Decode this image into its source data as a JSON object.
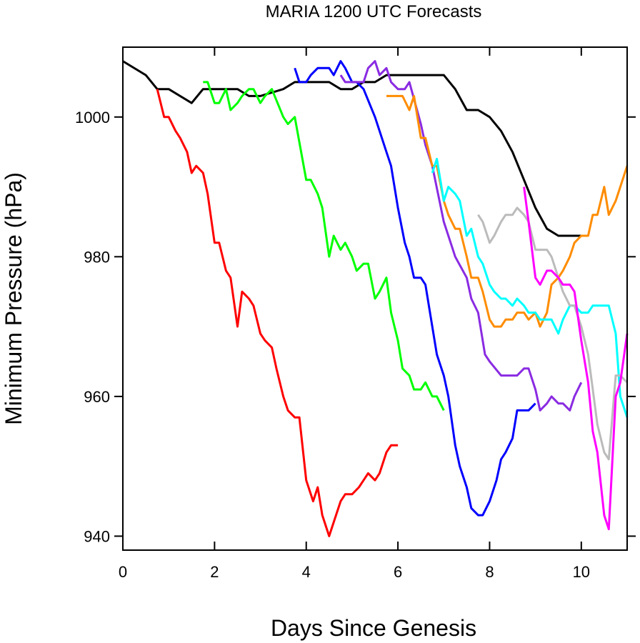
{
  "chart_data": {
    "type": "line",
    "title": "MARIA 1200 UTC Forecasts",
    "xlabel": "Days Since Genesis",
    "ylabel": "Minimum Pressure (hPa)",
    "xlim": [
      0,
      11
    ],
    "ylim": [
      938,
      1010
    ],
    "xticks": [
      "0",
      "2",
      "4",
      "6",
      "8",
      "10"
    ],
    "yticks": [
      "940",
      "960",
      "980",
      "1000"
    ],
    "grid": false,
    "legend": "none",
    "series": [
      {
        "color": "#000000",
        "points": [
          [
            0,
            1008
          ],
          [
            0.5,
            1006
          ],
          [
            0.75,
            1004
          ],
          [
            1,
            1004
          ],
          [
            1.5,
            1002
          ],
          [
            1.75,
            1004
          ],
          [
            2,
            1004
          ],
          [
            2.5,
            1004
          ],
          [
            2.75,
            1003
          ],
          [
            3,
            1003
          ],
          [
            3.5,
            1004
          ],
          [
            3.75,
            1005
          ],
          [
            4,
            1005
          ],
          [
            4.5,
            1005
          ],
          [
            4.75,
            1004
          ],
          [
            5,
            1004
          ],
          [
            5.25,
            1005
          ],
          [
            5.5,
            1005
          ],
          [
            5.75,
            1006
          ],
          [
            6,
            1006
          ],
          [
            6.5,
            1006
          ],
          [
            7,
            1006
          ],
          [
            7.25,
            1004
          ],
          [
            7.5,
            1001
          ],
          [
            7.75,
            1001
          ],
          [
            8,
            1000
          ],
          [
            8.25,
            998
          ],
          [
            8.5,
            995
          ],
          [
            8.75,
            991
          ],
          [
            9,
            987
          ],
          [
            9.25,
            984
          ],
          [
            9.5,
            983
          ],
          [
            10,
            983
          ]
        ]
      },
      {
        "color": "#ff0000",
        "points": [
          [
            0.75,
            1004
          ],
          [
            0.9,
            1000
          ],
          [
            1,
            1000
          ],
          [
            1.15,
            998
          ],
          [
            1.25,
            997
          ],
          [
            1.4,
            995
          ],
          [
            1.5,
            992
          ],
          [
            1.6,
            993
          ],
          [
            1.75,
            992
          ],
          [
            1.85,
            989
          ],
          [
            2,
            982
          ],
          [
            2.1,
            982
          ],
          [
            2.25,
            978
          ],
          [
            2.35,
            977
          ],
          [
            2.5,
            970
          ],
          [
            2.6,
            975
          ],
          [
            2.75,
            974
          ],
          [
            2.85,
            973
          ],
          [
            3,
            969
          ],
          [
            3.1,
            968
          ],
          [
            3.25,
            967
          ],
          [
            3.35,
            964
          ],
          [
            3.5,
            960
          ],
          [
            3.6,
            958
          ],
          [
            3.75,
            957
          ],
          [
            3.85,
            957
          ],
          [
            4,
            948
          ],
          [
            4.15,
            945
          ],
          [
            4.25,
            947
          ],
          [
            4.35,
            943
          ],
          [
            4.5,
            940
          ],
          [
            4.6,
            942
          ],
          [
            4.75,
            945
          ],
          [
            4.85,
            946
          ],
          [
            5,
            946
          ],
          [
            5.15,
            947
          ],
          [
            5.25,
            948
          ],
          [
            5.35,
            949
          ],
          [
            5.5,
            948
          ],
          [
            5.6,
            949
          ],
          [
            5.75,
            952
          ],
          [
            5.85,
            953
          ],
          [
            6,
            953
          ]
        ]
      },
      {
        "color": "#00ff00",
        "points": [
          [
            1.75,
            1005
          ],
          [
            1.85,
            1005
          ],
          [
            2,
            1002
          ],
          [
            2.1,
            1002
          ],
          [
            2.25,
            1004
          ],
          [
            2.35,
            1001
          ],
          [
            2.5,
            1002
          ],
          [
            2.6,
            1003
          ],
          [
            2.75,
            1004
          ],
          [
            2.85,
            1004
          ],
          [
            3,
            1002
          ],
          [
            3.1,
            1003
          ],
          [
            3.25,
            1004
          ],
          [
            3.5,
            1000
          ],
          [
            3.6,
            999
          ],
          [
            3.75,
            1000
          ],
          [
            4,
            991
          ],
          [
            4.1,
            991
          ],
          [
            4.25,
            989
          ],
          [
            4.35,
            987
          ],
          [
            4.5,
            980
          ],
          [
            4.6,
            983
          ],
          [
            4.75,
            981
          ],
          [
            4.85,
            982
          ],
          [
            5,
            980
          ],
          [
            5.1,
            978
          ],
          [
            5.25,
            979
          ],
          [
            5.35,
            979
          ],
          [
            5.5,
            974
          ],
          [
            5.6,
            975
          ],
          [
            5.75,
            977
          ],
          [
            5.85,
            972
          ],
          [
            6,
            968
          ],
          [
            6.1,
            964
          ],
          [
            6.25,
            963
          ],
          [
            6.35,
            961
          ],
          [
            6.5,
            961
          ],
          [
            6.6,
            962
          ],
          [
            6.75,
            960
          ],
          [
            6.85,
            960
          ],
          [
            7,
            958
          ]
        ]
      },
      {
        "color": "#0000ff",
        "points": [
          [
            3.75,
            1007
          ],
          [
            3.85,
            1005
          ],
          [
            4,
            1005
          ],
          [
            4.1,
            1006
          ],
          [
            4.25,
            1007
          ],
          [
            4.35,
            1007
          ],
          [
            4.5,
            1007
          ],
          [
            4.6,
            1006
          ],
          [
            4.75,
            1008
          ],
          [
            4.85,
            1007
          ],
          [
            5,
            1005
          ],
          [
            5.1,
            1005
          ],
          [
            5.25,
            1004
          ],
          [
            5.5,
            1000
          ],
          [
            5.75,
            995
          ],
          [
            5.85,
            993
          ],
          [
            6,
            987
          ],
          [
            6.15,
            982
          ],
          [
            6.25,
            980
          ],
          [
            6.35,
            977
          ],
          [
            6.5,
            977
          ],
          [
            6.6,
            976
          ],
          [
            6.75,
            970
          ],
          [
            6.85,
            966
          ],
          [
            7,
            963
          ],
          [
            7.1,
            960
          ],
          [
            7.25,
            953
          ],
          [
            7.35,
            950
          ],
          [
            7.5,
            947
          ],
          [
            7.6,
            944
          ],
          [
            7.75,
            943
          ],
          [
            7.85,
            943
          ],
          [
            8,
            945
          ],
          [
            8.15,
            948
          ],
          [
            8.25,
            951
          ],
          [
            8.35,
            952
          ],
          [
            8.5,
            954
          ],
          [
            8.6,
            958
          ],
          [
            8.75,
            958
          ],
          [
            8.85,
            958
          ],
          [
            9,
            959
          ]
        ]
      },
      {
        "color": "#8a2be2",
        "points": [
          [
            4.75,
            1006
          ],
          [
            4.85,
            1005
          ],
          [
            5,
            1005
          ],
          [
            5.1,
            1005
          ],
          [
            5.25,
            1005
          ],
          [
            5.35,
            1007
          ],
          [
            5.5,
            1008
          ],
          [
            5.6,
            1006
          ],
          [
            5.75,
            1007
          ],
          [
            5.85,
            1005
          ],
          [
            6,
            1004
          ],
          [
            6.15,
            1004
          ],
          [
            6.25,
            1005
          ],
          [
            6.5,
            999
          ],
          [
            6.6,
            996
          ],
          [
            6.75,
            993
          ],
          [
            7,
            985
          ],
          [
            7.25,
            980
          ],
          [
            7.5,
            977
          ],
          [
            7.6,
            974
          ],
          [
            7.75,
            972
          ],
          [
            7.9,
            966
          ],
          [
            8,
            965
          ],
          [
            8.25,
            963
          ],
          [
            8.5,
            963
          ],
          [
            8.6,
            963
          ],
          [
            8.75,
            964
          ],
          [
            8.85,
            964
          ],
          [
            9,
            961
          ],
          [
            9.1,
            958
          ],
          [
            9.25,
            959
          ],
          [
            9.35,
            960
          ],
          [
            9.5,
            959
          ],
          [
            9.6,
            959
          ],
          [
            9.75,
            958
          ],
          [
            9.85,
            960
          ],
          [
            10,
            962
          ]
        ]
      },
      {
        "color": "#ff8c00",
        "points": [
          [
            5.75,
            1003
          ],
          [
            6,
            1003
          ],
          [
            6.1,
            1003
          ],
          [
            6.25,
            1001
          ],
          [
            6.35,
            1003
          ],
          [
            6.5,
            997
          ],
          [
            6.6,
            997
          ],
          [
            6.75,
            993
          ],
          [
            6.85,
            993
          ],
          [
            7,
            988
          ],
          [
            7.1,
            986
          ],
          [
            7.25,
            984
          ],
          [
            7.35,
            984
          ],
          [
            7.5,
            980
          ],
          [
            7.6,
            977
          ],
          [
            7.75,
            977
          ],
          [
            7.85,
            975
          ],
          [
            8,
            971
          ],
          [
            8.1,
            970
          ],
          [
            8.25,
            970
          ],
          [
            8.35,
            971
          ],
          [
            8.5,
            971
          ],
          [
            8.6,
            972
          ],
          [
            8.75,
            972
          ],
          [
            8.85,
            971
          ],
          [
            9,
            972
          ],
          [
            9.1,
            970
          ],
          [
            9.25,
            972
          ],
          [
            9.35,
            976
          ],
          [
            9.5,
            977
          ],
          [
            9.6,
            978
          ],
          [
            9.75,
            980
          ],
          [
            9.85,
            982
          ],
          [
            10,
            983
          ],
          [
            10.15,
            983
          ],
          [
            10.25,
            986
          ],
          [
            10.35,
            986
          ],
          [
            10.5,
            990
          ],
          [
            10.6,
            986
          ],
          [
            10.75,
            988
          ],
          [
            10.85,
            990
          ],
          [
            11,
            993
          ]
        ]
      },
      {
        "color": "#00ffff",
        "points": [
          [
            6.75,
            992
          ],
          [
            6.85,
            994
          ],
          [
            7,
            988
          ],
          [
            7.1,
            990
          ],
          [
            7.25,
            989
          ],
          [
            7.35,
            988
          ],
          [
            7.5,
            983
          ],
          [
            7.6,
            984
          ],
          [
            7.75,
            980
          ],
          [
            7.85,
            979
          ],
          [
            8,
            976
          ],
          [
            8.1,
            975
          ],
          [
            8.25,
            974
          ],
          [
            8.35,
            974
          ],
          [
            8.5,
            973
          ],
          [
            8.6,
            974
          ],
          [
            8.75,
            973
          ],
          [
            8.85,
            972
          ],
          [
            9,
            972
          ],
          [
            9.1,
            971
          ],
          [
            9.25,
            971
          ],
          [
            9.35,
            971
          ],
          [
            9.5,
            969
          ],
          [
            9.6,
            971
          ],
          [
            9.75,
            973
          ],
          [
            9.85,
            973
          ],
          [
            10,
            972
          ],
          [
            10.15,
            972
          ],
          [
            10.25,
            973
          ],
          [
            10.5,
            973
          ],
          [
            10.6,
            973
          ],
          [
            10.75,
            969
          ],
          [
            10.85,
            960
          ],
          [
            11,
            957
          ]
        ]
      },
      {
        "color": "#bbbbbb",
        "points": [
          [
            7.75,
            986
          ],
          [
            7.85,
            985
          ],
          [
            8,
            982
          ],
          [
            8.1,
            983
          ],
          [
            8.25,
            985
          ],
          [
            8.35,
            986
          ],
          [
            8.5,
            986
          ],
          [
            8.6,
            987
          ],
          [
            8.75,
            986
          ],
          [
            8.85,
            985
          ],
          [
            9,
            981
          ],
          [
            9.1,
            981
          ],
          [
            9.25,
            981
          ],
          [
            9.35,
            980
          ],
          [
            9.5,
            977
          ],
          [
            9.6,
            975
          ],
          [
            9.75,
            973
          ],
          [
            9.85,
            973
          ],
          [
            10,
            970
          ],
          [
            10.15,
            966
          ],
          [
            10.25,
            961
          ],
          [
            10.35,
            956
          ],
          [
            10.5,
            952
          ],
          [
            10.6,
            951
          ],
          [
            10.75,
            963
          ],
          [
            10.85,
            963
          ],
          [
            11,
            962
          ]
        ]
      },
      {
        "color": "#ff00ff",
        "points": [
          [
            8.75,
            990
          ],
          [
            8.85,
            985
          ],
          [
            9,
            977
          ],
          [
            9.1,
            976
          ],
          [
            9.25,
            978
          ],
          [
            9.35,
            978
          ],
          [
            9.5,
            977
          ],
          [
            9.6,
            976
          ],
          [
            9.75,
            976
          ],
          [
            9.85,
            975
          ],
          [
            10,
            968
          ],
          [
            10.15,
            962
          ],
          [
            10.25,
            955
          ],
          [
            10.35,
            952
          ],
          [
            10.5,
            943
          ],
          [
            10.6,
            941
          ],
          [
            10.75,
            960
          ],
          [
            10.85,
            962
          ],
          [
            11,
            969
          ]
        ]
      }
    ]
  }
}
